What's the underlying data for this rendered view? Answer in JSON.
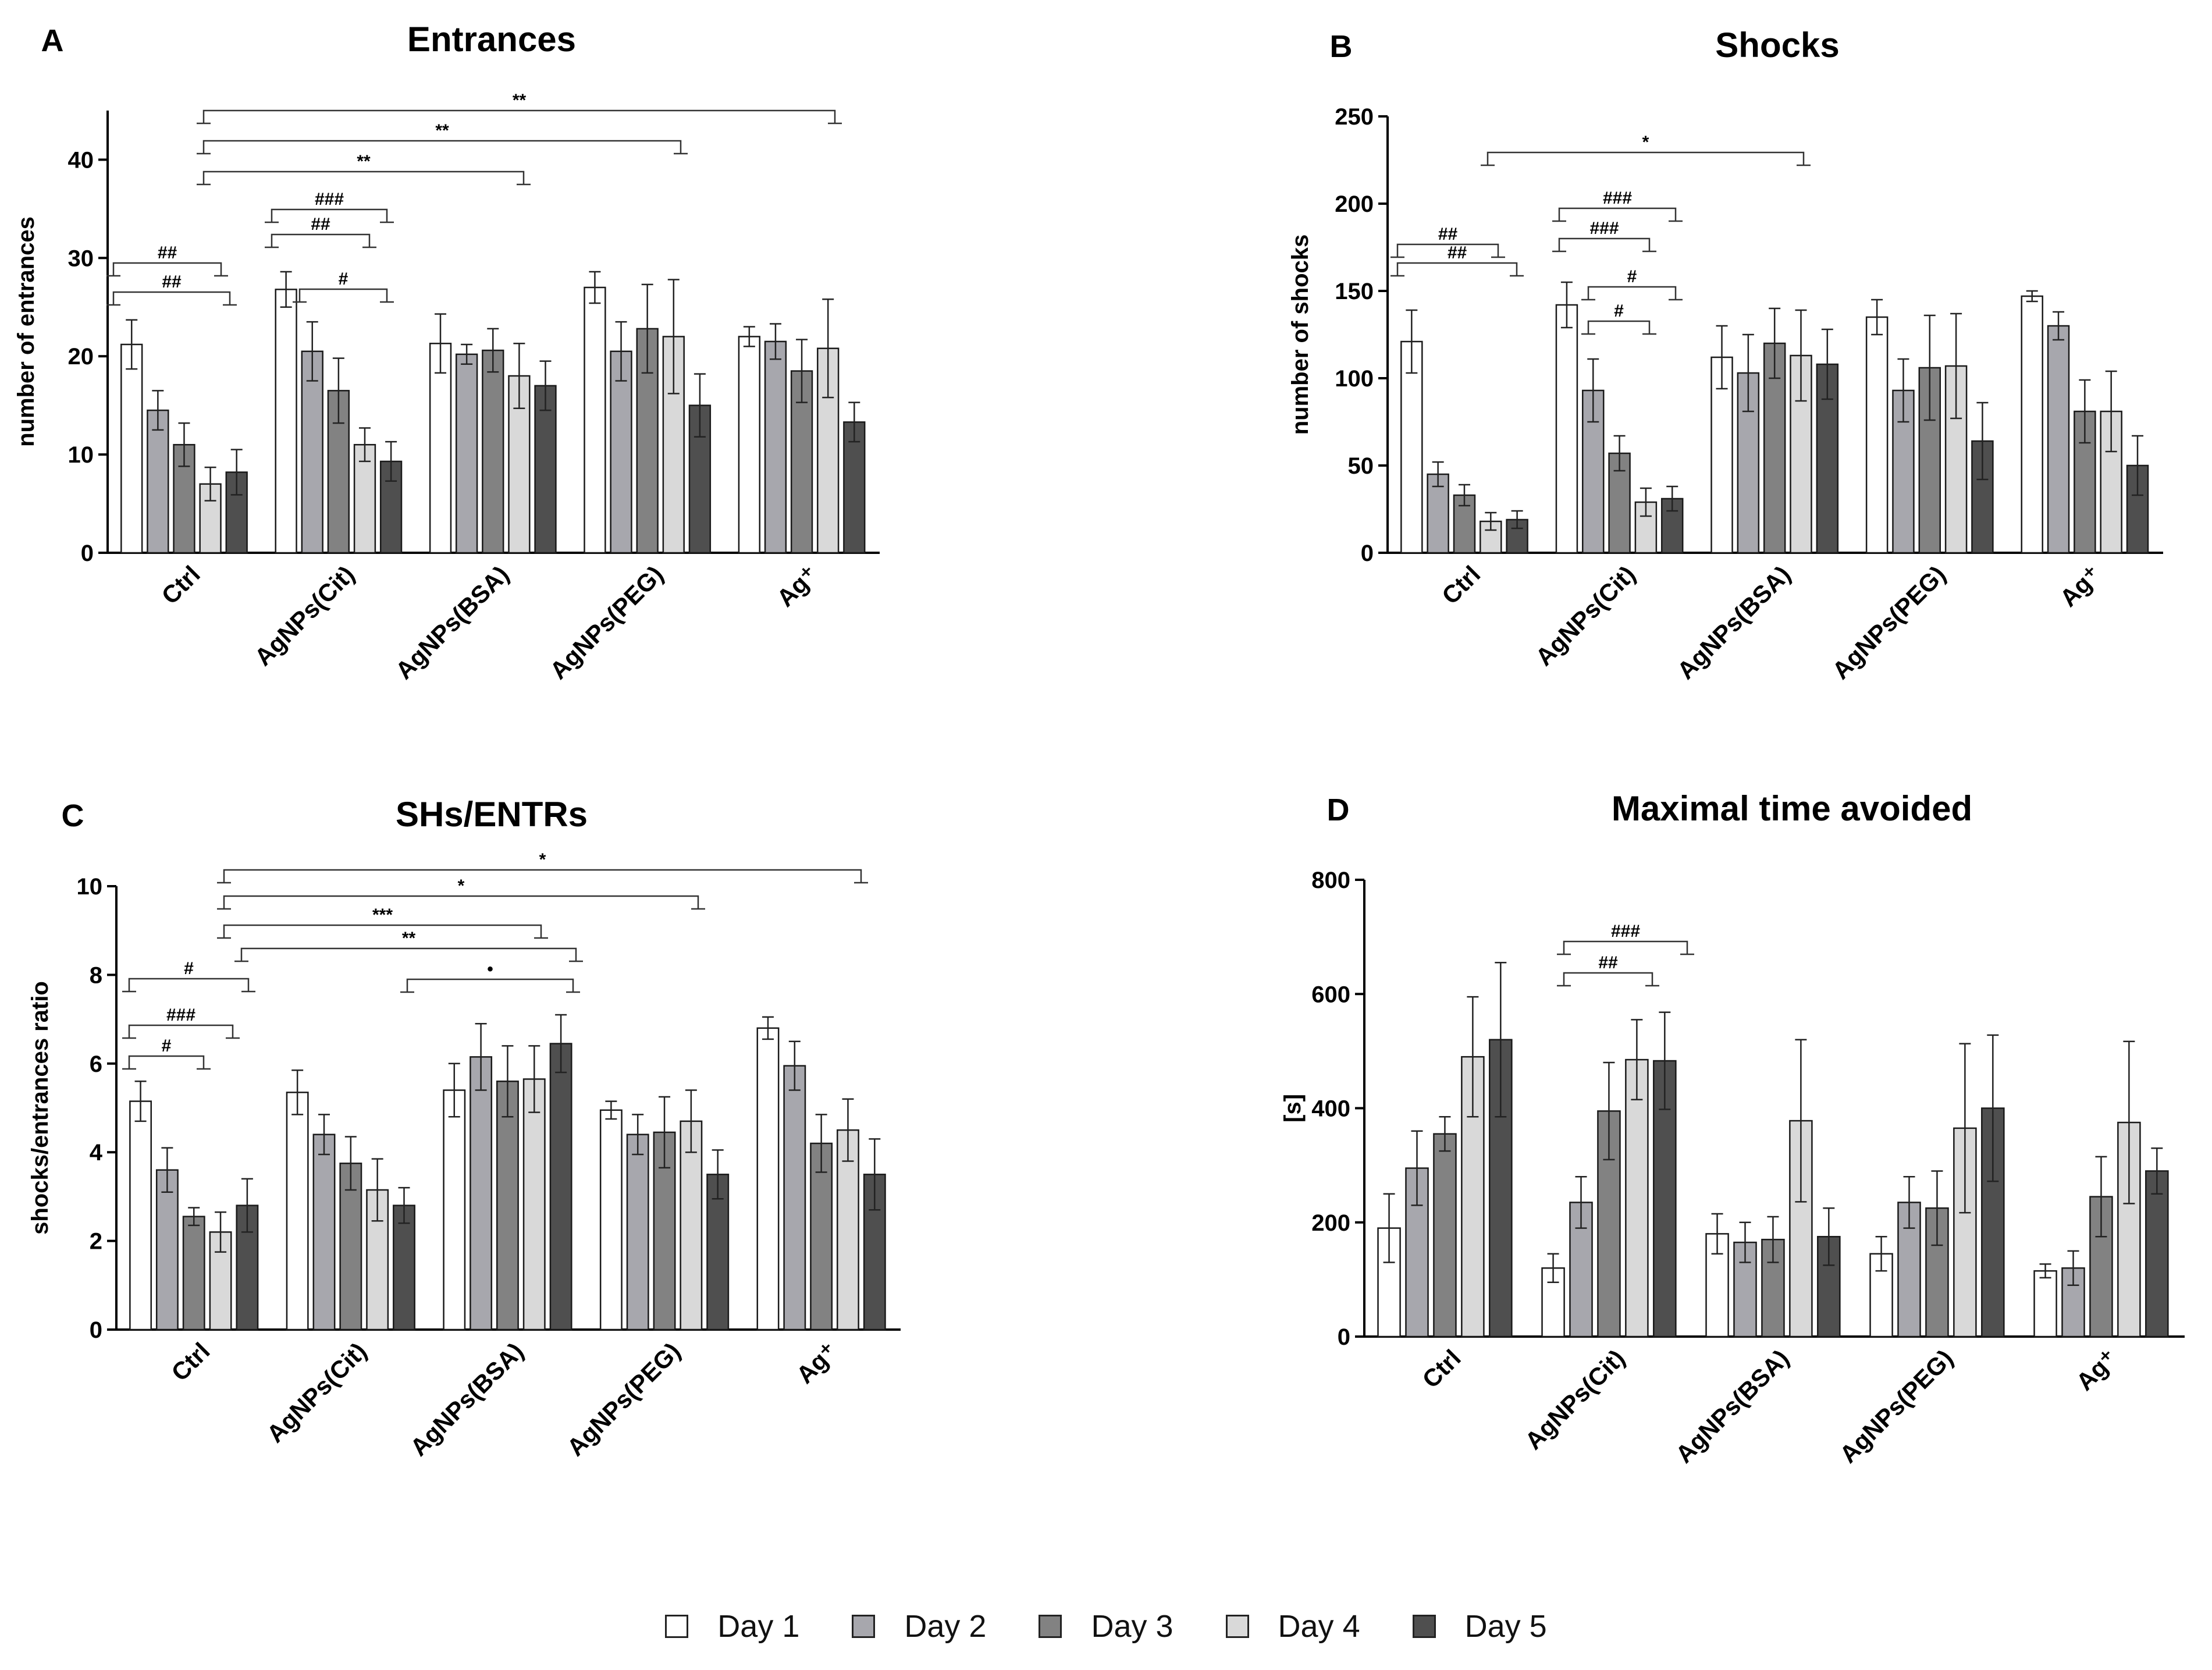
{
  "legend": [
    {
      "label": "Day 1",
      "color": "#ffffff"
    },
    {
      "label": "Day 2",
      "color": "#a7a7ad"
    },
    {
      "label": "Day 3",
      "color": "#828282"
    },
    {
      "label": "Day 4",
      "color": "#d9d9d9"
    },
    {
      "label": "Day 5",
      "color": "#4f4f4f"
    }
  ],
  "chart_data": [
    {
      "id": "A",
      "letter": "A",
      "type": "bar",
      "title": "Entrances",
      "ylabel": "number of entrances",
      "ylim": [
        0,
        45
      ],
      "yticks": [
        0,
        10,
        20,
        30,
        40
      ],
      "categories": [
        "Ctrl",
        "AgNPs(Cit)",
        "AgNPs(BSA)",
        "AgNPs(PEG)",
        "Ag⁺"
      ],
      "series": [
        {
          "name": "Day 1",
          "values": [
            21.2,
            26.8,
            21.3,
            27.0,
            22.0
          ],
          "errors": [
            2.5,
            1.8,
            3.0,
            1.6,
            1.0
          ]
        },
        {
          "name": "Day 2",
          "values": [
            14.5,
            20.5,
            20.2,
            20.5,
            21.5
          ],
          "errors": [
            2.0,
            3.0,
            1.0,
            3.0,
            1.8
          ]
        },
        {
          "name": "Day 3",
          "values": [
            11.0,
            16.5,
            20.6,
            22.8,
            18.5
          ],
          "errors": [
            2.2,
            3.3,
            2.2,
            4.5,
            3.2
          ]
        },
        {
          "name": "Day 4",
          "values": [
            7.0,
            11.0,
            18.0,
            22.0,
            20.8
          ],
          "errors": [
            1.7,
            1.7,
            3.3,
            5.8,
            5.0
          ]
        },
        {
          "name": "Day 5",
          "values": [
            8.2,
            9.3,
            17.0,
            15.0,
            13.3
          ],
          "errors": [
            2.3,
            2.0,
            2.5,
            3.2,
            2.0
          ]
        }
      ],
      "annotations": [
        "##",
        "##",
        "###",
        "##",
        "#",
        "**",
        "**",
        "**"
      ]
    },
    {
      "id": "B",
      "letter": "B",
      "type": "bar",
      "title": "Shocks",
      "ylabel": "number of shocks",
      "ylim": [
        0,
        250
      ],
      "yticks": [
        0,
        50,
        100,
        150,
        200,
        250
      ],
      "categories": [
        "Ctrl",
        "AgNPs(Cit)",
        "AgNPs(BSA)",
        "AgNPs(PEG)",
        "Ag⁺"
      ],
      "series": [
        {
          "name": "Day 1",
          "values": [
            121,
            142,
            112,
            135,
            147
          ],
          "errors": [
            18,
            13,
            18,
            10,
            3
          ]
        },
        {
          "name": "Day 2",
          "values": [
            45,
            93,
            103,
            93,
            130
          ],
          "errors": [
            7,
            18,
            22,
            18,
            8
          ]
        },
        {
          "name": "Day 3",
          "values": [
            33,
            57,
            120,
            106,
            81
          ],
          "errors": [
            6,
            10,
            20,
            30,
            18
          ]
        },
        {
          "name": "Day 4",
          "values": [
            18,
            29,
            113,
            107,
            81
          ],
          "errors": [
            5,
            8,
            26,
            30,
            23
          ]
        },
        {
          "name": "Day 5",
          "values": [
            19,
            31,
            108,
            64,
            50
          ],
          "errors": [
            5,
            7,
            20,
            22,
            17
          ]
        }
      ],
      "annotations": [
        "##",
        "##",
        "###",
        "###",
        "#",
        "#",
        "*"
      ]
    },
    {
      "id": "C",
      "letter": "C",
      "type": "bar",
      "title": "SHs/ENTRs",
      "ylabel": "shocks/entrances ratio",
      "ylim": [
        0,
        10
      ],
      "yticks": [
        0,
        2,
        4,
        6,
        8,
        10
      ],
      "categories": [
        "Ctrl",
        "AgNPs(Cit)",
        "AgNPs(BSA)",
        "AgNPs(PEG)",
        "Ag⁺"
      ],
      "series": [
        {
          "name": "Day 1",
          "values": [
            5.15,
            5.35,
            5.4,
            4.95,
            6.8
          ],
          "errors": [
            0.45,
            0.5,
            0.6,
            0.2,
            0.25
          ]
        },
        {
          "name": "Day 2",
          "values": [
            3.6,
            4.4,
            6.15,
            4.4,
            5.95
          ],
          "errors": [
            0.5,
            0.45,
            0.75,
            0.45,
            0.55
          ]
        },
        {
          "name": "Day 3",
          "values": [
            2.55,
            3.75,
            5.6,
            4.45,
            4.2
          ],
          "errors": [
            0.2,
            0.6,
            0.8,
            0.8,
            0.65
          ]
        },
        {
          "name": "Day 4",
          "values": [
            2.2,
            3.15,
            5.65,
            4.7,
            4.5
          ],
          "errors": [
            0.45,
            0.7,
            0.75,
            0.7,
            0.7
          ]
        },
        {
          "name": "Day 5",
          "values": [
            2.8,
            2.8,
            6.45,
            3.5,
            3.5
          ],
          "errors": [
            0.6,
            0.4,
            0.65,
            0.55,
            0.8
          ]
        }
      ],
      "annotations": [
        "#",
        "###",
        "#",
        "*",
        "*",
        "***",
        "**",
        "•"
      ]
    },
    {
      "id": "D",
      "letter": "D",
      "type": "bar",
      "title": "Maximal time avoided",
      "ylabel": "[s]",
      "ylim": [
        0,
        800
      ],
      "yticks": [
        0,
        200,
        400,
        600,
        800
      ],
      "categories": [
        "Ctrl",
        "AgNPs(Cit)",
        "AgNPs(BSA)",
        "AgNPs(PEG)",
        "Ag⁺"
      ],
      "series": [
        {
          "name": "Day 1",
          "values": [
            190,
            120,
            180,
            145,
            115
          ],
          "errors": [
            60,
            25,
            35,
            30,
            12
          ]
        },
        {
          "name": "Day 2",
          "values": [
            295,
            235,
            165,
            235,
            120
          ],
          "errors": [
            65,
            45,
            35,
            45,
            30
          ]
        },
        {
          "name": "Day 3",
          "values": [
            355,
            395,
            170,
            225,
            245
          ],
          "errors": [
            30,
            85,
            40,
            65,
            70
          ]
        },
        {
          "name": "Day 4",
          "values": [
            490,
            485,
            378,
            365,
            375
          ],
          "errors": [
            105,
            70,
            142,
            148,
            142
          ]
        },
        {
          "name": "Day 5",
          "values": [
            520,
            483,
            175,
            400,
            290
          ],
          "errors": [
            135,
            85,
            50,
            128,
            40
          ]
        }
      ],
      "annotations": [
        "###",
        "##"
      ]
    }
  ]
}
